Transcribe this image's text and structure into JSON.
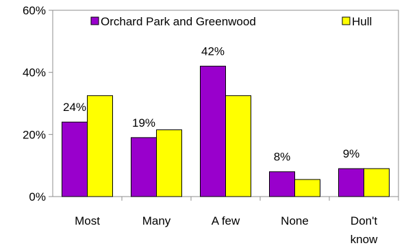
{
  "chart_data": {
    "type": "bar",
    "title": "",
    "xlabel": "",
    "ylabel": "",
    "ylim": [
      0,
      60
    ],
    "yticks": [
      0,
      20,
      40,
      60
    ],
    "ytick_suffix": "%",
    "grid": false,
    "legend_position": "top",
    "categories": [
      [
        "Most"
      ],
      [
        "Many"
      ],
      [
        "A few"
      ],
      [
        "None"
      ],
      [
        "Don't",
        "know"
      ]
    ],
    "series": [
      {
        "name": "Orchard Park and Greenwood",
        "color": "#9900CC",
        "values": [
          24,
          19,
          42,
          8,
          9
        ],
        "labels": [
          "24%",
          "19%",
          "42%",
          "8%",
          "9%"
        ]
      },
      {
        "name": "Hull",
        "color": "#FFFF00",
        "values": [
          32.5,
          21.5,
          32.5,
          5.5,
          9
        ]
      }
    ]
  }
}
